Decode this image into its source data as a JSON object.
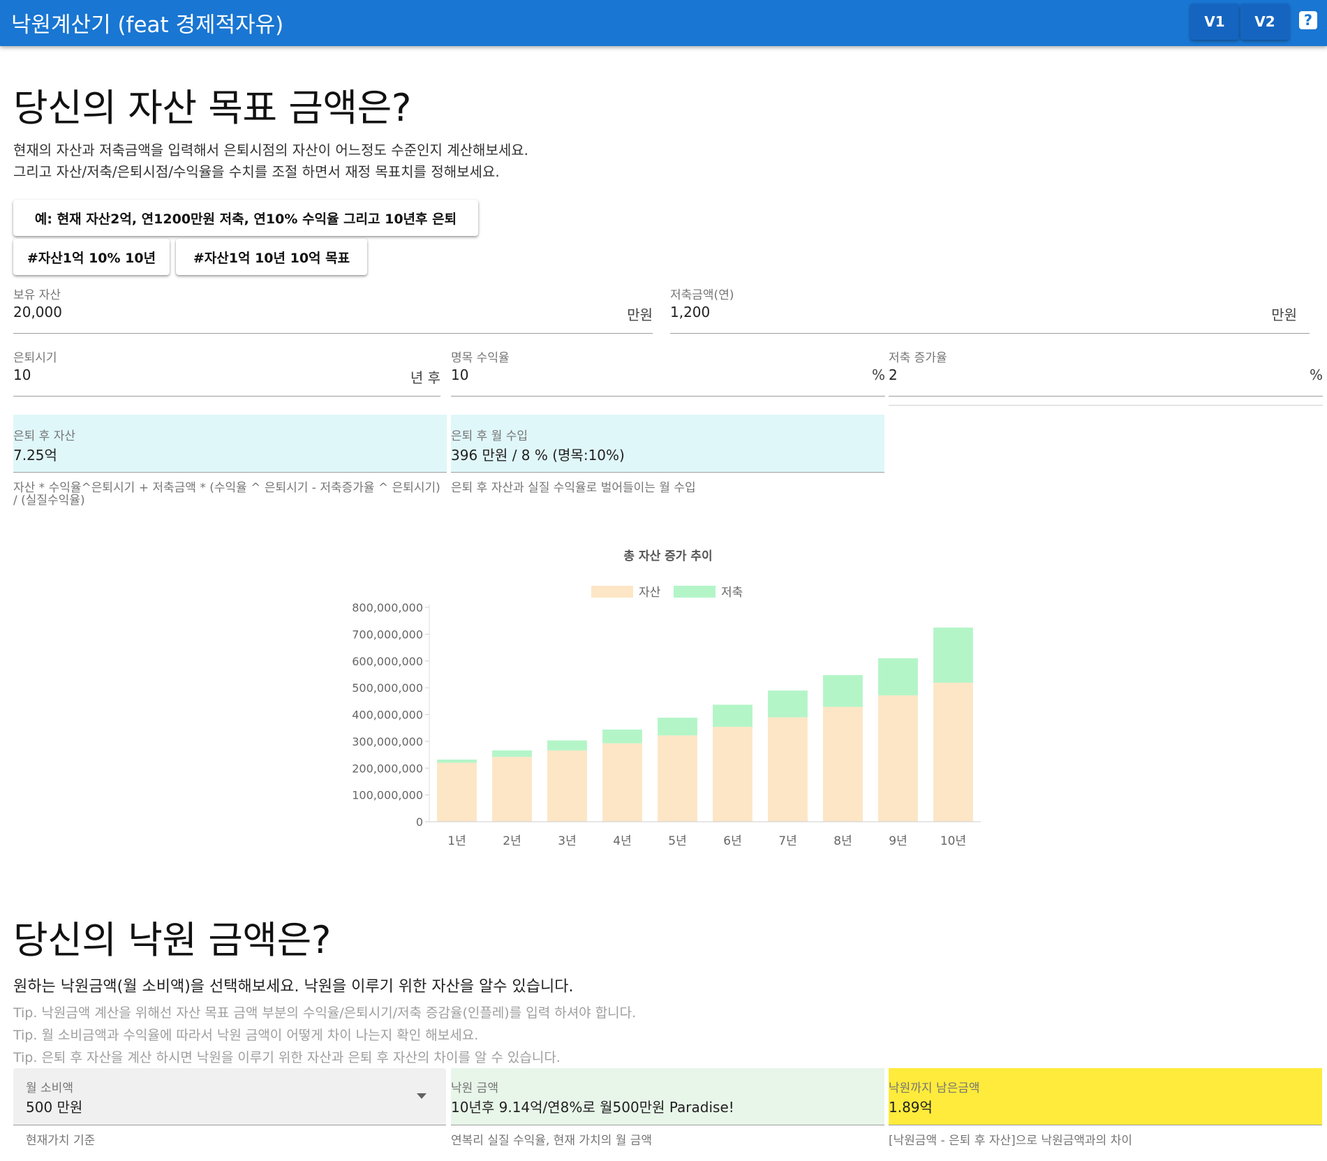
{
  "appbar": {
    "title": "낙원계산기 (feat 경제적자유)",
    "v1_label": "V1",
    "v2_label": "V2",
    "help_label": "?"
  },
  "section1": {
    "title": "당신의 자산 목표 금액은?",
    "desc_line1": "현재의 자산과 저축금액을 입력해서 은퇴시점의 자산이 어느정도 수준인지 계산해보세요.",
    "desc_line2": "그리고 자산/저축/은퇴시점/수익율을 수치를 조절 하면서 재정 목표치를 정해보세요.",
    "examples": [
      "예: 현재 자산2억, 연1200만원 저축, 연10% 수익율 그리고 10년후 은퇴",
      "#자산1억 10% 10년",
      "#자산1억 10년 10억 목표"
    ]
  },
  "fields": {
    "assets": {
      "label": "보유 자산",
      "value": "20,000",
      "suffix": "만원"
    },
    "savings": {
      "label": "저축금액(연)",
      "value": "1,200",
      "suffix": "만원"
    },
    "retire": {
      "label": "은퇴시기",
      "value": "10",
      "suffix": "년 후"
    },
    "return_rate": {
      "label": "명목 수익율",
      "value": "10",
      "suffix": "%"
    },
    "savings_growth": {
      "label": "저축 증가율",
      "value": "2",
      "suffix": "%"
    }
  },
  "results": {
    "after_assets": {
      "label": "은퇴 후 자산",
      "value": "7.25억",
      "hint": "자산 * 수익율^은퇴시기 + 저축금액 * (수익율 ^ 은퇴시기 - 저축증가율 ^ 은퇴시기) / (실질수익율)"
    },
    "monthly_income": {
      "label": "은퇴 후 월 수입",
      "value": "396 만원 / 8 % (명목:10%)",
      "hint": "은퇴 후 자산과 실질 수익율로 벌어들이는 월 수입"
    }
  },
  "chart_data": {
    "type": "bar",
    "stacked": true,
    "title": "총 자산 증가 추이",
    "categories": [
      "1년",
      "2년",
      "3년",
      "4년",
      "5년",
      "6년",
      "7년",
      "8년",
      "9년",
      "10년"
    ],
    "series": [
      {
        "name": "자산",
        "color": "#fde6c6",
        "values": [
          220000000,
          242000000,
          266200000,
          292820000,
          322102000,
          354312200,
          389743420,
          428717762,
          471589538,
          518748492
        ]
      },
      {
        "name": "저축",
        "color": "#b4f5c8",
        "values": [
          12000000,
          24240000,
          37200000,
          51200000,
          66200000,
          82400000,
          99800000,
          118500000,
          138600000,
          206000000
        ]
      }
    ],
    "ylim": [
      0,
      800000000
    ],
    "y_ticks": [
      "0",
      "100,000,000",
      "200,000,000",
      "300,000,000",
      "400,000,000",
      "500,000,000",
      "600,000,000",
      "700,000,000",
      "800,000,000"
    ],
    "legend_position": "top",
    "grid": false
  },
  "section2": {
    "title": "당신의 낙원 금액은?",
    "desc": "원하는 낙원금액(월 소비액)을 선택해보세요. 낙원을 이루기 위한 자산을 알수 있습니다.",
    "tip1": "Tip. 낙원금액 계산을 위해선 자산 목표 금액 부분의 수익율/은퇴시기/저축 증감율(인플레)를 입력 하셔야 합니다.",
    "tip2": "Tip. 월 소비금액과 수익율에 따라서 낙원 금액이 어떻게 차이 나는지 확인 해보세요.",
    "tip3": "Tip. 은퇴 후 자산을 계산 하시면 낙원을 이루기 위한 자산과 은퇴 후 자산의 차이를 알 수 있습니다.",
    "monthly_spend": {
      "label": "월 소비액",
      "value": "500 만원",
      "hint": "현재가치 기준"
    },
    "paradise": {
      "label": "낙원 금액",
      "value": "10년후 9.14억/연8%로 월500만원 Paradise!",
      "hint": "연복리 실질 수익율, 현재 가치의 월 금액"
    },
    "remaining": {
      "label": "낙원까지 남은금액",
      "value": "1.89억",
      "hint": "[낙원금액 - 은퇴 후 자산]으로 낙원금액과의 차이"
    }
  }
}
